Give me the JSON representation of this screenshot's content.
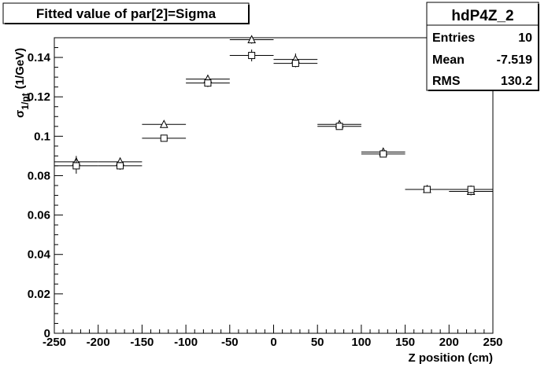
{
  "title": "Fitted value of par[2]=Sigma",
  "stats": {
    "name": "hdP4Z_2",
    "rows": [
      {
        "label": "Entries",
        "value": "10"
      },
      {
        "label": "Mean",
        "value": "-7.519"
      },
      {
        "label": "RMS",
        "value": "130.2"
      }
    ]
  },
  "chart_data": {
    "type": "scatter",
    "title": "Fitted value of par[2]=Sigma",
    "xlabel": "Z position (cm)",
    "ylabel": "σ1/pt (1/GeV)",
    "ylabel_main": "σ",
    "ylabel_sub": "1/pt",
    "ylabel_unit": "(1/GeV)",
    "xlim": [
      -250,
      250
    ],
    "ylim": [
      0,
      0.15
    ],
    "x_ticks": [
      -250,
      -200,
      -150,
      -100,
      -50,
      0,
      50,
      100,
      150,
      200,
      250
    ],
    "y_ticks": [
      0,
      0.02,
      0.04,
      0.06,
      0.08,
      0.1,
      0.12,
      0.14
    ],
    "y_tick_labels": [
      "0",
      "0.02",
      "0.04",
      "0.06",
      "0.08",
      "0.1",
      "0.12",
      "0.14"
    ],
    "grid": false,
    "series": [
      {
        "marker": "open-triangle",
        "x": [
          -225,
          -175,
          -125,
          -75,
          -25,
          25,
          75,
          125,
          175,
          225
        ],
        "x_halfwidth": [
          25,
          25,
          25,
          25,
          25,
          25,
          25,
          25,
          25,
          25
        ],
        "y": [
          0.087,
          0.087,
          0.106,
          0.129,
          0.149,
          0.139,
          0.106,
          0.092,
          0.073,
          0.072
        ],
        "y_err": [
          0.003,
          0.002,
          0.001,
          0.002,
          0.002,
          0.003,
          0.001,
          0.001,
          0.001,
          0.002
        ]
      },
      {
        "marker": "open-square",
        "x": [
          -225,
          -175,
          -125,
          -75,
          -25,
          25,
          75,
          125,
          175,
          225
        ],
        "x_halfwidth": [
          25,
          25,
          25,
          25,
          25,
          25,
          25,
          25,
          25,
          25
        ],
        "y": [
          0.085,
          0.085,
          0.099,
          0.127,
          0.141,
          0.137,
          0.105,
          0.091,
          0.073,
          0.073
        ],
        "y_err": [
          0.004,
          0.002,
          0.001,
          0.002,
          0.003,
          0.002,
          0.001,
          0.001,
          0.001,
          0.002
        ]
      }
    ]
  }
}
